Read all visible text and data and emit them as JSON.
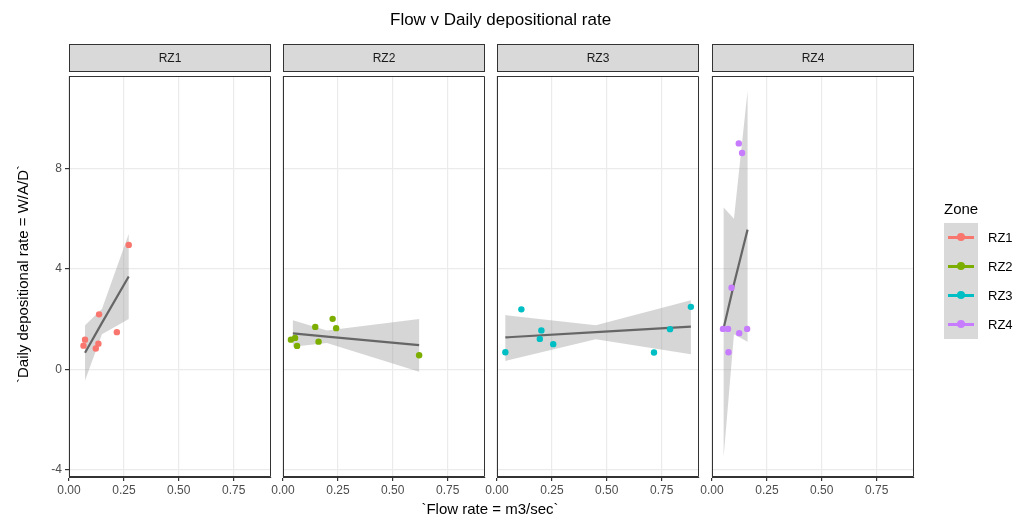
{
  "chart_data": [
    {
      "type": "scatter",
      "subtitle": "RZ1",
      "ylabel": "`Daily depositional rate = W/A/D`",
      "legend_title": "Zone",
      "legend": "right",
      "grid": true,
      "xlim": [
        0,
        0.92
      ],
      "xticks": [
        {
          "value": 0,
          "label": "0.00"
        },
        {
          "value": 0.25,
          "label": "0.25"
        },
        {
          "value": 0.5,
          "label": "0.50"
        },
        {
          "value": 0.75,
          "label": "0.75"
        }
      ],
      "ylim": [
        -4.3,
        11.7
      ],
      "yticks": [
        -4,
        0,
        4,
        8
      ],
      "series": [
        {
          "name": "RZ1",
          "color": "#f8766d",
          "type": "scatter",
          "marker": "circle",
          "x": [
            0.272,
            0.137,
            0.218,
            0.073,
            0.066,
            0.134,
            0.122
          ],
          "values": [
            4.96,
            2.19,
            1.48,
            1.18,
            0.94,
            1.02,
            0.83
          ]
        },
        {
          "color": "#666666",
          "type": "line",
          "marker": "none",
          "x": [
            0.073,
            0.15,
            0.272
          ],
          "values": [
            0.66,
            1.85,
            3.7
          ],
          "lower": [
            -0.45,
            1.4,
            2.0
          ],
          "upper": [
            1.75,
            2.4,
            5.4
          ]
        }
      ]
    },
    {
      "type": "scatter",
      "title": "Flow v Daily depositional rate",
      "xlabel": "`Flow rate = m3/sec`",
      "subtitle": "RZ2",
      "grid": true,
      "tick_labels": "x",
      "xlim": [
        0,
        0.92
      ],
      "xticks": [
        {
          "value": 0,
          "label": "0.00"
        },
        {
          "value": 0.25,
          "label": "0.25"
        },
        {
          "value": 0.5,
          "label": "0.50"
        },
        {
          "value": 0.75,
          "label": "0.75"
        }
      ],
      "ylim": [
        -4.3,
        11.7
      ],
      "yticks": [
        -4,
        0,
        4,
        8
      ],
      "series": [
        {
          "name": "RZ2",
          "color": "#7cae00",
          "type": "scatter",
          "marker": "circle",
          "x": [
            0.226,
            0.147,
            0.242,
            0.036,
            0.055,
            0.064,
            0.162,
            0.62
          ],
          "values": [
            2.01,
            1.69,
            1.64,
            1.18,
            1.25,
            0.93,
            1.1,
            0.56
          ]
        },
        {
          "color": "#666666",
          "type": "line",
          "marker": "none",
          "x": [
            0.045,
            0.2,
            0.62
          ],
          "values": [
            1.43,
            1.3,
            0.96
          ],
          "lower": [
            0.9,
            1.05,
            -0.1
          ],
          "upper": [
            1.95,
            1.55,
            2.0
          ]
        }
      ]
    },
    {
      "type": "scatter",
      "subtitle": "RZ3",
      "grid": true,
      "tick_labels": "x",
      "xlim": [
        0,
        0.92
      ],
      "xticks": [
        {
          "value": 0,
          "label": "0.00"
        },
        {
          "value": 0.25,
          "label": "0.25"
        },
        {
          "value": 0.5,
          "label": "0.50"
        },
        {
          "value": 0.75,
          "label": "0.75"
        }
      ],
      "ylim": [
        -4.3,
        11.7
      ],
      "yticks": [
        -4,
        0,
        4,
        8
      ],
      "series": [
        {
          "name": "RZ3",
          "color": "#00bfc4",
          "type": "scatter",
          "marker": "circle",
          "x": [
            0.111,
            0.038,
            0.202,
            0.195,
            0.256,
            0.715,
            0.788,
            0.883
          ],
          "values": [
            2.39,
            0.68,
            1.55,
            1.21,
            1.0,
            0.67,
            1.6,
            2.49
          ]
        },
        {
          "color": "#666666",
          "type": "line",
          "marker": "none",
          "x": [
            0.038,
            0.45,
            0.883
          ],
          "values": [
            1.27,
            1.48,
            1.7
          ],
          "lower": [
            0.33,
            1.2,
            0.6
          ],
          "upper": [
            2.16,
            1.75,
            2.75
          ]
        }
      ]
    },
    {
      "type": "scatter",
      "subtitle": "RZ4",
      "grid": true,
      "tick_labels": "x",
      "xlim": [
        0,
        0.92
      ],
      "xticks": [
        {
          "value": 0,
          "label": "0.00"
        },
        {
          "value": 0.25,
          "label": "0.25"
        },
        {
          "value": 0.5,
          "label": "0.50"
        },
        {
          "value": 0.75,
          "label": "0.75"
        }
      ],
      "ylim": [
        -4.3,
        11.7
      ],
      "yticks": [
        -4,
        0,
        4,
        8
      ],
      "series": [
        {
          "name": "RZ4",
          "color": "#c77cff",
          "type": "scatter",
          "marker": "circle",
          "x": [
            0.122,
            0.137,
            0.089,
            0.05,
            0.073,
            0.124,
            0.16,
            0.075
          ],
          "values": [
            9.01,
            8.63,
            3.25,
            1.61,
            1.61,
            1.44,
            1.61,
            0.68
          ]
        },
        {
          "color": "#666666",
          "type": "line",
          "marker": "none",
          "x": [
            0.053,
            0.1,
            0.162
          ],
          "values": [
            1.64,
            3.4,
            5.57
          ],
          "lower": [
            -3.5,
            1.4,
            1.1
          ],
          "upper": [
            6.45,
            6.0,
            11.1
          ]
        }
      ]
    }
  ]
}
